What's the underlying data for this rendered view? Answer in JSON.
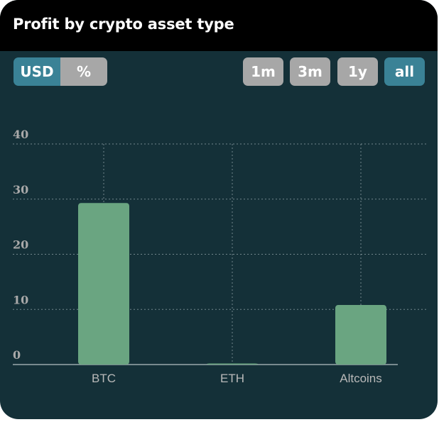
{
  "header": {
    "title": "Profit by crypto asset type"
  },
  "unit_toggle": {
    "usd_label": "USD",
    "percent_label": "%",
    "selected": "USD"
  },
  "range_buttons": {
    "labels": [
      "1m",
      "3m",
      "1y",
      "all"
    ],
    "selected": "all"
  },
  "colors": {
    "card_bg": "#143038",
    "header_bg": "#000000",
    "active_button": "#3a8296",
    "inactive_button": "#a7a7a7",
    "bar": "#6aa581",
    "grid": "#8a9ca1",
    "label": "#b9b9b9"
  },
  "chart_data": {
    "type": "bar",
    "categories": [
      "BTC",
      "ETH",
      "Altcoins"
    ],
    "values": [
      29.3,
      0.1,
      10.8
    ],
    "ylim": [
      0,
      40
    ],
    "yticks": [
      0,
      10,
      20,
      30,
      40
    ],
    "grid": true,
    "legend": "none",
    "title": "",
    "xlabel": "",
    "ylabel": ""
  }
}
